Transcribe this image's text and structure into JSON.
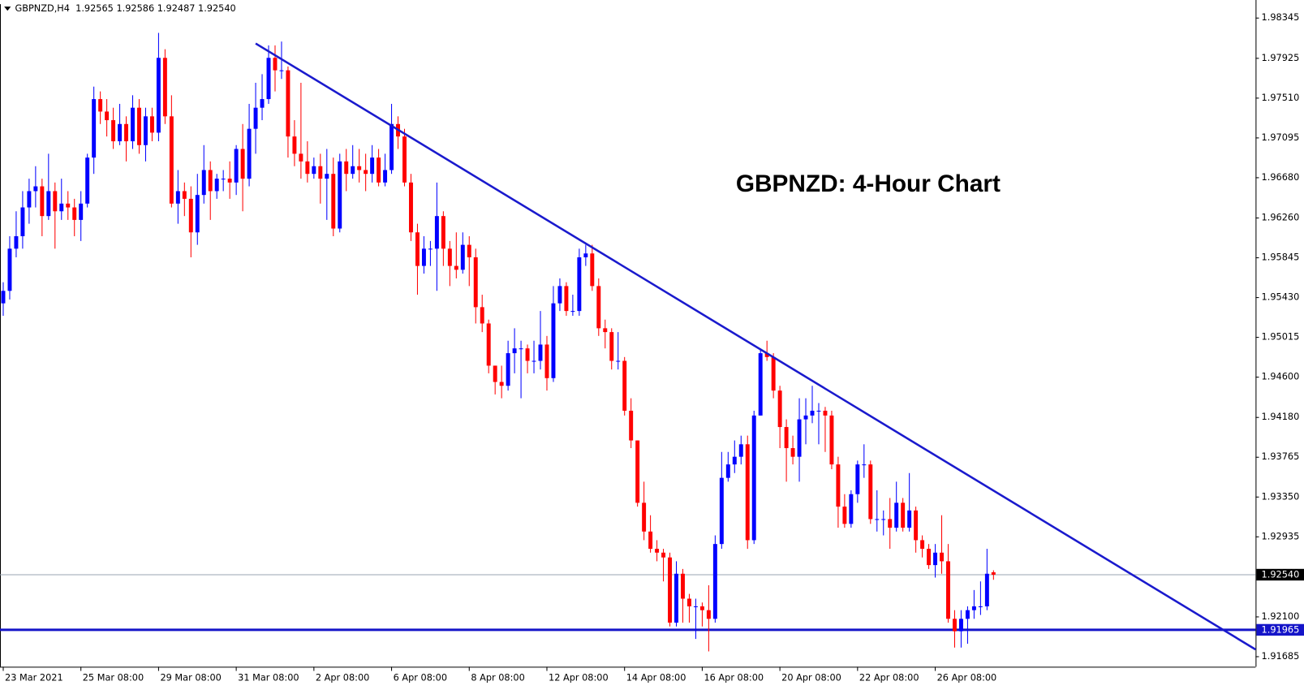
{
  "chart_data": {
    "type": "candlestick",
    "header": "GBPNZD,H4  1.92565 1.92586 1.92487 1.92540",
    "title": "GBPNZD: 4-Hour Chart",
    "up_color": "#0000ff",
    "down_color": "#ff0000",
    "xlim": [
      -0.5,
      193.5
    ],
    "xticks": [
      {
        "value": 0,
        "label": "23 Mar 2021"
      },
      {
        "value": 12,
        "label": "25 Mar 08:00"
      },
      {
        "value": 24,
        "label": "29 Mar 08:00"
      },
      {
        "value": 36,
        "label": "31 Mar 08:00"
      },
      {
        "value": 48,
        "label": "2 Apr 08:00"
      },
      {
        "value": 60,
        "label": "6 Apr 08:00"
      },
      {
        "value": 72,
        "label": "8 Apr 08:00"
      },
      {
        "value": 84,
        "label": "12 Apr 08:00"
      },
      {
        "value": 96,
        "label": "14 Apr 08:00"
      },
      {
        "value": 108,
        "label": "16 Apr 08:00"
      },
      {
        "value": 120,
        "label": "20 Apr 08:00"
      },
      {
        "value": 132,
        "label": "22 Apr 08:00"
      },
      {
        "value": 144,
        "label": "26 Apr 08:00"
      }
    ],
    "ylim": [
      1.9158,
      1.9849
    ],
    "yticks": [
      1.98345,
      1.97925,
      {
        "value": 1.9751,
        "label": "1.97510"
      },
      1.97095,
      {
        "value": 1.9668,
        "label": "1.96680"
      },
      {
        "value": 1.9626,
        "label": "1.96260"
      },
      1.95845,
      {
        "value": 1.9543,
        "label": "1.95430"
      },
      1.95015,
      {
        "value": 1.946,
        "label": "1.94600"
      },
      {
        "value": 1.9418,
        "label": "1.94180"
      },
      1.93765,
      {
        "value": 1.9335,
        "label": "1.93350"
      },
      1.92935,
      {
        "value": 1.921,
        "label": "1.92100"
      },
      1.91685
    ],
    "hlines": [
      {
        "value": 1.9254,
        "label": "1.92540",
        "color": "#9aa6b2",
        "label_color": "#000000"
      },
      {
        "value": 1.91965,
        "color": "#1414c8",
        "label_color": "#1414c8"
      }
    ],
    "trendline": {
      "x": [
        39,
        193.5
      ],
      "y": [
        1.9808,
        1.9176
      ],
      "color": "#1a1acd"
    },
    "ohlc": [
      [
        1.9537,
        1.9559,
        1.9524,
        1.955
      ],
      [
        1.955,
        1.9607,
        1.9541,
        1.9594
      ],
      [
        1.9594,
        1.9633,
        1.9585,
        1.9607
      ],
      [
        1.9607,
        1.9654,
        1.9594,
        1.9637
      ],
      [
        1.9637,
        1.9667,
        1.962,
        1.9654
      ],
      [
        1.9654,
        1.968,
        1.9637,
        1.9659
      ],
      [
        1.9659,
        1.9667,
        1.9607,
        1.9628
      ],
      [
        1.9628,
        1.9693,
        1.9624,
        1.9654
      ],
      [
        1.9654,
        1.9663,
        1.9594,
        1.9633
      ],
      [
        1.9633,
        1.9667,
        1.9624,
        1.9641
      ],
      [
        1.9641,
        1.9654,
        1.9624,
        1.9637
      ],
      [
        1.9637,
        1.9646,
        1.9607,
        1.9624
      ],
      [
        1.9624,
        1.9654,
        1.9602,
        1.9641
      ],
      [
        1.9641,
        1.9693,
        1.9637,
        1.9689
      ],
      [
        1.9689,
        1.9763,
        1.9672,
        1.975
      ],
      [
        1.975,
        1.9758,
        1.9724,
        1.9737
      ],
      [
        1.9737,
        1.975,
        1.9711,
        1.9728
      ],
      [
        1.9728,
        1.9741,
        1.9698,
        1.9706
      ],
      [
        1.9706,
        1.9745,
        1.9702,
        1.9724
      ],
      [
        1.9724,
        1.9732,
        1.9685,
        1.9706
      ],
      [
        1.9706,
        1.9754,
        1.9698,
        1.9741
      ],
      [
        1.9741,
        1.975,
        1.9693,
        1.9702
      ],
      [
        1.9702,
        1.9741,
        1.9685,
        1.9732
      ],
      [
        1.9732,
        1.9741,
        1.9706,
        1.9715
      ],
      [
        1.9715,
        1.9819,
        1.9706,
        1.9793
      ],
      [
        1.9793,
        1.9802,
        1.9724,
        1.9732
      ],
      [
        1.9732,
        1.9754,
        1.9637,
        1.9641
      ],
      [
        1.9641,
        1.9676,
        1.962,
        1.9654
      ],
      [
        1.9654,
        1.9663,
        1.9628,
        1.9646
      ],
      [
        1.9646,
        1.9659,
        1.9585,
        1.9611
      ],
      [
        1.9611,
        1.9672,
        1.9598,
        1.965
      ],
      [
        1.965,
        1.9702,
        1.9641,
        1.9676
      ],
      [
        1.9676,
        1.9685,
        1.9624,
        1.9654
      ],
      [
        1.9654,
        1.9672,
        1.9646,
        1.9667
      ],
      [
        1.9667,
        1.9676,
        1.9654,
        1.9667
      ],
      [
        1.9667,
        1.9685,
        1.9646,
        1.9663
      ],
      [
        1.9663,
        1.9702,
        1.965,
        1.9698
      ],
      [
        1.9698,
        1.9724,
        1.9633,
        1.9667
      ],
      [
        1.9667,
        1.9745,
        1.9659,
        1.9719
      ],
      [
        1.9719,
        1.9767,
        1.9693,
        1.9741
      ],
      [
        1.9741,
        1.9776,
        1.9728,
        1.975
      ],
      [
        1.975,
        1.9806,
        1.9745,
        1.9793
      ],
      [
        1.9793,
        1.9806,
        1.9758,
        1.978
      ],
      [
        1.978,
        1.981,
        1.9771,
        1.978
      ],
      [
        1.978,
        1.9784,
        1.9689,
        1.9711
      ],
      [
        1.9711,
        1.9728,
        1.968,
        1.9693
      ],
      [
        1.9693,
        1.9767,
        1.9667,
        1.9685
      ],
      [
        1.9685,
        1.9706,
        1.9663,
        1.9672
      ],
      [
        1.9672,
        1.9689,
        1.9667,
        1.968
      ],
      [
        1.968,
        1.9693,
        1.9641,
        1.9667
      ],
      [
        1.9667,
        1.9698,
        1.9624,
        1.9672
      ],
      [
        1.9672,
        1.9689,
        1.9607,
        1.9615
      ],
      [
        1.9615,
        1.9693,
        1.9611,
        1.9685
      ],
      [
        1.9685,
        1.9698,
        1.9654,
        1.9672
      ],
      [
        1.9672,
        1.9702,
        1.9667,
        1.968
      ],
      [
        1.968,
        1.9698,
        1.9663,
        1.9676
      ],
      [
        1.9676,
        1.9693,
        1.9654,
        1.9672
      ],
      [
        1.9672,
        1.9702,
        1.9663,
        1.9689
      ],
      [
        1.9689,
        1.9698,
        1.9659,
        1.9663
      ],
      [
        1.9663,
        1.9693,
        1.9659,
        1.9676
      ],
      [
        1.9676,
        1.9745,
        1.9672,
        1.9724
      ],
      [
        1.9724,
        1.9732,
        1.9698,
        1.9711
      ],
      [
        1.9711,
        1.9719,
        1.9659,
        1.9663
      ],
      [
        1.9663,
        1.9672,
        1.9602,
        1.9611
      ],
      [
        1.9611,
        1.962,
        1.9546,
        1.9576
      ],
      [
        1.9576,
        1.9607,
        1.9568,
        1.9594
      ],
      [
        1.9594,
        1.9602,
        1.9576,
        1.9594
      ],
      [
        1.9594,
        1.9663,
        1.955,
        1.9628
      ],
      [
        1.9628,
        1.9633,
        1.9576,
        1.9594
      ],
      [
        1.9594,
        1.9602,
        1.9555,
        1.9576
      ],
      [
        1.9576,
        1.9611,
        1.9563,
        1.9572
      ],
      [
        1.9572,
        1.9611,
        1.9568,
        1.9598
      ],
      [
        1.9598,
        1.9607,
        1.9555,
        1.9585
      ],
      [
        1.9585,
        1.9594,
        1.9516,
        1.9533
      ],
      [
        1.9533,
        1.9546,
        1.9507,
        1.9516
      ],
      [
        1.9516,
        1.952,
        1.9464,
        1.9472
      ],
      [
        1.9472,
        1.9472,
        1.9442,
        1.9455
      ],
      [
        1.9455,
        1.9472,
        1.9438,
        1.9451
      ],
      [
        1.9451,
        1.9498,
        1.9446,
        1.9485
      ],
      [
        1.9485,
        1.9511,
        1.9464,
        1.949
      ],
      [
        1.949,
        1.9498,
        1.9438,
        1.949
      ],
      [
        1.949,
        1.9494,
        1.9464,
        1.9477
      ],
      [
        1.9477,
        1.9498,
        1.9464,
        1.9477
      ],
      [
        1.9477,
        1.9529,
        1.9468,
        1.9494
      ],
      [
        1.9494,
        1.9503,
        1.9446,
        1.9459
      ],
      [
        1.9459,
        1.9555,
        1.9455,
        1.9537
      ],
      [
        1.9537,
        1.9563,
        1.9529,
        1.9555
      ],
      [
        1.9555,
        1.9559,
        1.9524,
        1.9529
      ],
      [
        1.9529,
        1.9546,
        1.9524,
        1.9529
      ],
      [
        1.9529,
        1.9594,
        1.9524,
        1.9585
      ],
      [
        1.9585,
        1.9598,
        1.9576,
        1.9589
      ],
      [
        1.9589,
        1.9598,
        1.955,
        1.9555
      ],
      [
        1.9555,
        1.9563,
        1.9503,
        1.9511
      ],
      [
        1.9511,
        1.952,
        1.949,
        1.9507
      ],
      [
        1.9507,
        1.9511,
        1.9468,
        1.9477
      ],
      [
        1.9477,
        1.9507,
        1.9468,
        1.9477
      ],
      [
        1.9477,
        1.9481,
        1.942,
        1.9425
      ],
      [
        1.9425,
        1.9438,
        1.9386,
        1.9394
      ],
      [
        1.9394,
        1.9394,
        1.9325,
        1.9329
      ],
      [
        1.9329,
        1.9351,
        1.929,
        1.9299
      ],
      [
        1.9299,
        1.9316,
        1.9277,
        1.9281
      ],
      [
        1.9281,
        1.929,
        1.9268,
        1.9277
      ],
      [
        1.9277,
        1.9281,
        1.9247,
        1.9272
      ],
      [
        1.9272,
        1.9277,
        1.92,
        1.9204
      ],
      [
        1.9204,
        1.9268,
        1.92,
        1.9255
      ],
      [
        1.9255,
        1.926,
        1.9204,
        1.9229
      ],
      [
        1.9229,
        1.9234,
        1.9204,
        1.9221
      ],
      [
        1.9221,
        1.9229,
        1.9187,
        1.9221
      ],
      [
        1.9221,
        1.9225,
        1.92,
        1.9217
      ],
      [
        1.9217,
        1.9243,
        1.9174,
        1.9208
      ],
      [
        1.9208,
        1.9295,
        1.9204,
        1.9286
      ],
      [
        1.9286,
        1.9382,
        1.9281,
        1.9355
      ],
      [
        1.9355,
        1.9382,
        1.9351,
        1.9369
      ],
      [
        1.9369,
        1.9394,
        1.936,
        1.9377
      ],
      [
        1.9377,
        1.9399,
        1.9369,
        1.939
      ],
      [
        1.939,
        1.9399,
        1.9281,
        1.929
      ],
      [
        1.929,
        1.9425,
        1.9286,
        1.942
      ],
      [
        1.942,
        1.949,
        1.942,
        1.9485
      ],
      [
        1.9485,
        1.9498,
        1.9477,
        1.9481
      ],
      [
        1.9481,
        1.9485,
        1.9438,
        1.9446
      ],
      [
        1.9446,
        1.9451,
        1.9386,
        1.9408
      ],
      [
        1.9408,
        1.9416,
        1.9351,
        1.9386
      ],
      [
        1.9386,
        1.9399,
        1.9369,
        1.9377
      ],
      [
        1.9377,
        1.9438,
        1.9351,
        1.9416
      ],
      [
        1.9416,
        1.9438,
        1.939,
        1.942
      ],
      [
        1.942,
        1.9451,
        1.9412,
        1.9425
      ],
      [
        1.9425,
        1.9433,
        1.939,
        1.9425
      ],
      [
        1.9425,
        1.9429,
        1.9382,
        1.942
      ],
      [
        1.942,
        1.9425,
        1.9364,
        1.9369
      ],
      [
        1.9369,
        1.9377,
        1.9303,
        1.9325
      ],
      [
        1.9325,
        1.9338,
        1.9303,
        1.9307
      ],
      [
        1.9307,
        1.9342,
        1.9303,
        1.9338
      ],
      [
        1.9338,
        1.9373,
        1.9329,
        1.9369
      ],
      [
        1.9369,
        1.939,
        1.9355,
        1.9369
      ],
      [
        1.9369,
        1.9373,
        1.9307,
        1.9312
      ],
      [
        1.9312,
        1.9342,
        1.9299,
        1.9312
      ],
      [
        1.9312,
        1.9321,
        1.9295,
        1.9312
      ],
      [
        1.9312,
        1.9334,
        1.9281,
        1.9303
      ],
      [
        1.9303,
        1.9351,
        1.9299,
        1.9329
      ],
      [
        1.9329,
        1.9334,
        1.9299,
        1.9303
      ],
      [
        1.9303,
        1.936,
        1.9299,
        1.9321
      ],
      [
        1.9321,
        1.9325,
        1.9277,
        1.929
      ],
      [
        1.929,
        1.9295,
        1.9272,
        1.9281
      ],
      [
        1.9281,
        1.9286,
        1.926,
        1.9264
      ],
      [
        1.9264,
        1.9286,
        1.9251,
        1.9277
      ],
      [
        1.9277,
        1.9316,
        1.9255,
        1.9268
      ],
      [
        1.9268,
        1.9286,
        1.9204,
        1.9208
      ],
      [
        1.9208,
        1.9217,
        1.9178,
        1.9195
      ],
      [
        1.9195,
        1.9217,
        1.9178,
        1.9208
      ],
      [
        1.9208,
        1.9221,
        1.9182,
        1.9217
      ],
      [
        1.9217,
        1.9238,
        1.9208,
        1.9221
      ],
      [
        1.9221,
        1.9247,
        1.9212,
        1.9221
      ],
      [
        1.9221,
        1.9281,
        1.9217,
        1.9255
      ],
      [
        1.92565,
        1.92586,
        1.92487,
        1.9254
      ]
    ]
  }
}
